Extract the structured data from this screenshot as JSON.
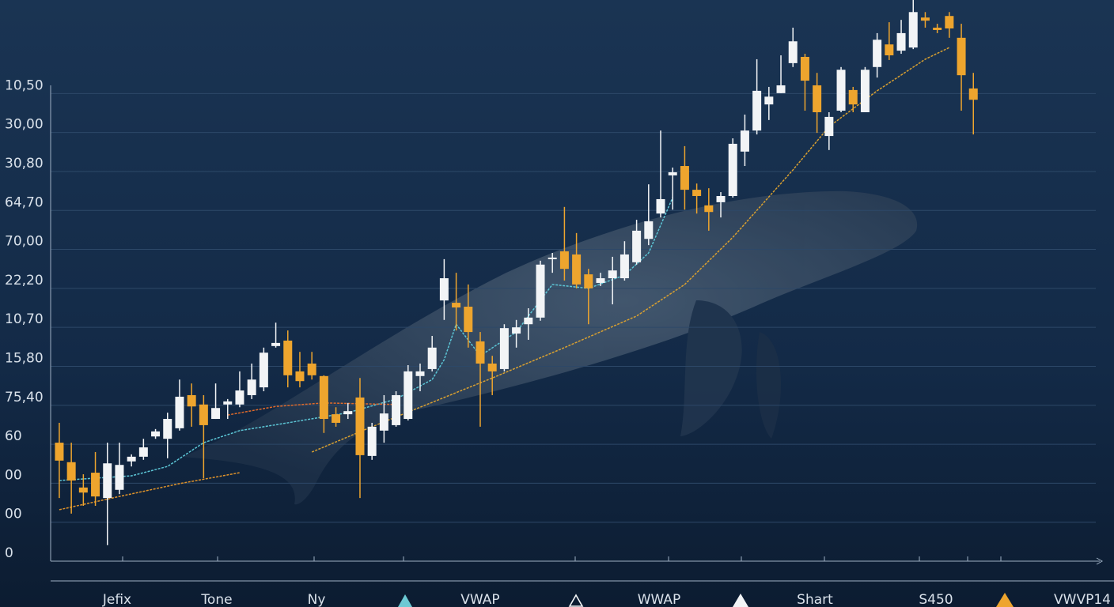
{
  "chart_data": {
    "type": "candlestick",
    "categories": [
      null,
      null,
      null,
      null,
      null,
      null,
      null,
      null,
      null,
      null,
      null,
      null,
      null,
      null,
      null,
      null,
      null,
      null,
      null,
      null,
      null,
      null,
      null,
      null,
      null,
      null,
      null,
      null,
      null,
      null,
      null,
      null,
      null,
      null,
      null,
      null,
      null,
      null,
      null,
      null,
      null,
      null,
      null,
      null,
      null,
      null,
      null,
      null,
      null,
      null,
      null,
      null,
      null,
      null,
      null,
      null,
      null,
      null,
      null,
      null,
      null,
      null,
      null,
      null,
      null,
      null,
      null,
      null,
      null,
      null,
      null,
      null,
      null,
      null,
      null,
      null,
      null
    ],
    "open": [
      3.04,
      2.54,
      1.89,
      2.27,
      1.62,
      1.83,
      2.56,
      2.68,
      3.2,
      3.14,
      3.41,
      4.26,
      4.02,
      3.65,
      4.02,
      4.02,
      4.26,
      4.46,
      5.52,
      5.66,
      4.87,
      5.07,
      4.75,
      3.77,
      3.77,
      4.2,
      2.7,
      3.35,
      3.49,
      3.65,
      4.75,
      4.93,
      6.69,
      6.63,
      6.53,
      5.64,
      5.07,
      4.93,
      5.84,
      6.08,
      6.25,
      7.75,
      7.95,
      7.87,
      7.36,
      7.14,
      7.26,
      7.26,
      7.67,
      8.27,
      8.92,
      9.9,
      10.14,
      9.53,
      9.13,
      9.21,
      9.37,
      10.51,
      11.05,
      11.72,
      12.01,
      12.78,
      12.94,
      12.21,
      10.91,
      11.56,
      12.09,
      11.52,
      12.68,
      13.26,
      13.1,
      13.18,
      13.95,
      13.69,
      13.99,
      13.43,
      12.13
    ],
    "high": [
      3.55,
      3.04,
      2.23,
      2.8,
      3.04,
      3.04,
      2.74,
      3.14,
      3.39,
      3.81,
      4.66,
      4.56,
      4.26,
      4.56,
      4.16,
      4.87,
      5.07,
      5.48,
      6.12,
      5.92,
      5.37,
      5.37,
      4.77,
      3.95,
      4.06,
      4.7,
      3.55,
      4.26,
      4.36,
      5.03,
      5.07,
      5.78,
      7.75,
      7.4,
      7.1,
      5.88,
      5.27,
      6.08,
      6.19,
      6.49,
      7.71,
      7.91,
      9.09,
      8.42,
      7.5,
      7.4,
      7.81,
      8.21,
      8.76,
      9.67,
      11.05,
      10.1,
      10.65,
      9.69,
      9.57,
      9.47,
      10.85,
      11.46,
      12.88,
      12.17,
      12.98,
      13.69,
      13.02,
      12.53,
      11.52,
      12.68,
      12.17,
      12.68,
      13.55,
      13.83,
      13.89,
      14.4,
      14.09,
      13.79,
      14.09,
      13.79,
      12.53
    ],
    "low": [
      1.62,
      1.22,
      1.42,
      1.42,
      0.41,
      1.72,
      2.43,
      2.6,
      3.14,
      2.64,
      3.35,
      3.45,
      2.13,
      3.65,
      3.65,
      3.95,
      4.16,
      4.36,
      5.48,
      4.46,
      4.46,
      4.66,
      3.29,
      3.45,
      3.65,
      1.62,
      2.6,
      3.04,
      3.45,
      3.61,
      4.36,
      4.87,
      6.19,
      5.92,
      5.48,
      3.45,
      4.26,
      4.87,
      5.48,
      5.68,
      6.17,
      7.4,
      7.2,
      7.0,
      6.08,
      7.06,
      6.59,
      7.2,
      7.61,
      8.11,
      8.82,
      9.02,
      9.02,
      8.92,
      8.48,
      8.82,
      9.33,
      10.14,
      10.95,
      11.32,
      12.01,
      12.68,
      11.56,
      10.99,
      10.55,
      11.52,
      11.52,
      11.52,
      12.41,
      12.86,
      13.02,
      13.14,
      13.69,
      13.55,
      13.43,
      11.56,
      10.95
    ],
    "close": [
      2.58,
      2.07,
      1.76,
      1.66,
      2.51,
      2.47,
      2.68,
      2.92,
      3.33,
      3.65,
      4.22,
      3.97,
      3.49,
      3.93,
      4.1,
      4.38,
      4.66,
      5.35,
      5.6,
      4.77,
      4.62,
      4.77,
      3.65,
      3.55,
      3.85,
      2.72,
      3.45,
      3.79,
      4.26,
      4.87,
      4.87,
      5.48,
      7.26,
      6.51,
      5.88,
      5.07,
      4.87,
      5.98,
      6.0,
      6.25,
      7.61,
      7.79,
      7.5,
      7.1,
      7.0,
      7.26,
      7.46,
      7.87,
      8.48,
      8.72,
      9.29,
      9.98,
      9.53,
      9.37,
      8.96,
      9.37,
      10.71,
      11.05,
      12.07,
      11.92,
      12.21,
      13.34,
      12.33,
      11.52,
      11.4,
      12.61,
      11.72,
      12.61,
      13.38,
      12.98,
      13.55,
      14.09,
      13.87,
      13.63,
      13.67,
      12.47,
      11.84
    ],
    "up_color": "#f2f4f6",
    "down_color": "#eea52e",
    "lines": [
      {
        "color": "#5cc6d6",
        "x": [
          0,
          4,
          6,
          9,
          12,
          15,
          19,
          24,
          28,
          31,
          32,
          33,
          35,
          38,
          41,
          44,
          47,
          49,
          51
        ],
        "values": [
          2.07,
          2.15,
          2.19,
          2.43,
          3.04,
          3.35,
          3.55,
          3.81,
          4.16,
          4.66,
          5.17,
          6.08,
          5.27,
          5.88,
          7.1,
          7.0,
          7.34,
          7.91,
          9.33
        ]
      },
      {
        "color": "#e0932a",
        "x": [
          0,
          5,
          10,
          15
        ],
        "values": [
          1.32,
          1.66,
          1.99,
          2.27
        ]
      },
      {
        "color": "#e06a2a",
        "x": [
          14,
          18,
          22,
          28
        ],
        "values": [
          3.75,
          3.97,
          4.06,
          4.02
        ]
      },
      {
        "color": "#d9a030",
        "x": [
          21,
          26,
          30,
          36,
          42,
          48,
          52,
          56,
          61,
          64,
          68,
          72,
          74
        ],
        "values": [
          2.8,
          3.45,
          3.95,
          4.7,
          5.48,
          6.29,
          7.1,
          8.31,
          10.04,
          11.15,
          12.07,
          12.88,
          13.18
        ]
      }
    ],
    "xlim": [
      -0.72,
      86.18
    ],
    "ylim": [
      0,
      14.4
    ],
    "yticks": [
      0,
      {
        "value": 1,
        "label": "00"
      },
      {
        "value": 2,
        "label": "00"
      },
      {
        "value": 3,
        "label": "60"
      },
      {
        "value": 4,
        "label": "75,40"
      },
      {
        "value": 5,
        "label": "15,80"
      },
      {
        "value": 6,
        "label": "10,70"
      },
      {
        "value": 7,
        "label": "22,20"
      },
      {
        "value": 8,
        "label": "70,00"
      },
      {
        "value": 9,
        "label": "64,70"
      },
      {
        "value": 10,
        "label": "30,80"
      },
      {
        "value": 11,
        "label": "30,00"
      },
      {
        "value": 12,
        "label": "10,50"
      }
    ],
    "grid": true,
    "x_labels": [
      "Jefix",
      "Tone",
      "Ny",
      "VWAP",
      "WWAP",
      "Shart",
      "S450",
      "VWVP14"
    ]
  }
}
